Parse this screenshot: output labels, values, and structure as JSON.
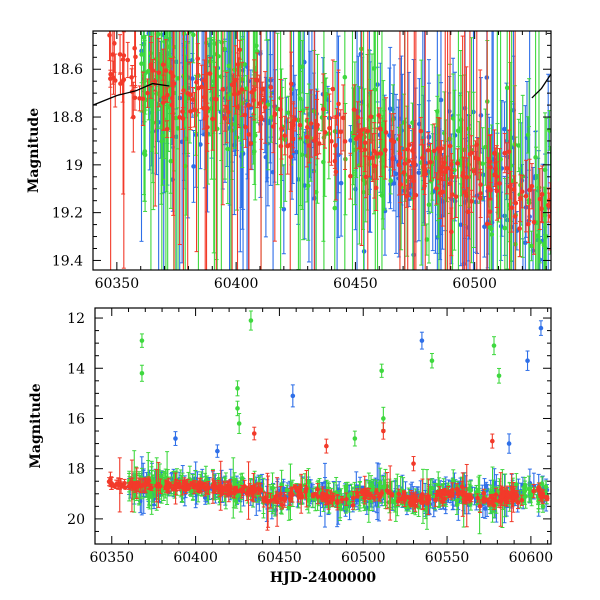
{
  "chart_data": [
    {
      "type": "scatter",
      "panel": "top",
      "ylabel": "Magnitude",
      "xlabel": "",
      "xlim": [
        60340,
        60532
      ],
      "ylim": [
        19.44,
        18.44
      ],
      "y_inverted": true,
      "x_ticks": [
        60350,
        60400,
        60450,
        60500
      ],
      "x_tick_labels": [
        "60350",
        "60400",
        "60450",
        "60500"
      ],
      "y_ticks": [
        18.6,
        18.8,
        19.0,
        19.2,
        19.4
      ],
      "y_tick_labels": [
        "18.6",
        "18.8",
        "19",
        "19.2",
        "19.4"
      ],
      "grid": false,
      "series": [
        {
          "color": "#2e6fe8",
          "values_description_x_range": [
            60360,
            60532
          ],
          "typical_y": [
            18.6,
            19.2
          ]
        },
        {
          "color": "#3ed83e",
          "values_description_x_range": [
            60360,
            60532
          ],
          "typical_y": [
            18.6,
            19.2
          ]
        },
        {
          "color": "#f23a2a",
          "values_description_x_range": [
            60346,
            60532
          ],
          "typical_y": [
            18.55,
            19.15
          ]
        }
      ],
      "trend_curve": {
        "color": "#000000",
        "points": [
          [
            60340,
            18.75
          ],
          [
            60350,
            18.71
          ],
          [
            60358,
            18.69
          ],
          [
            60365,
            18.66
          ],
          [
            60372,
            18.67
          ]
        ]
      },
      "trend_curve_right": {
        "color": "#000000",
        "points": [
          [
            60524,
            18.72
          ],
          [
            60528,
            18.68
          ],
          [
            60532,
            18.62
          ]
        ]
      }
    },
    {
      "type": "scatter",
      "panel": "bottom",
      "ylabel": "Magnitude",
      "xlabel": "HJD-2400000",
      "xlim": [
        60340,
        60612
      ],
      "ylim": [
        21.0,
        11.6
      ],
      "y_inverted": true,
      "x_ticks": [
        60350,
        60400,
        60450,
        60500,
        60550,
        60600
      ],
      "x_tick_labels": [
        "60350",
        "60400",
        "60450",
        "60500",
        "60550",
        "60600"
      ],
      "y_ticks": [
        12,
        14,
        16,
        18,
        20
      ],
      "y_tick_labels": [
        "12",
        "14",
        "16",
        "18",
        "20"
      ],
      "grid": false,
      "series": [
        {
          "color": "#2e6fe8"
        },
        {
          "color": "#3ed83e"
        },
        {
          "color": "#f23a2a"
        }
      ],
      "outliers": [
        {
          "series": 1,
          "x": 60368,
          "y": 12.9
        },
        {
          "series": 1,
          "x": 60368,
          "y": 14.2
        },
        {
          "series": 1,
          "x": 60433,
          "y": 12.1
        },
        {
          "series": 1,
          "x": 60425,
          "y": 14.8
        },
        {
          "series": 1,
          "x": 60425,
          "y": 15.6
        },
        {
          "series": 1,
          "x": 60426,
          "y": 16.2
        },
        {
          "series": 1,
          "x": 60511,
          "y": 14.1
        },
        {
          "series": 1,
          "x": 60512,
          "y": 16.0
        },
        {
          "series": 1,
          "x": 60541,
          "y": 13.7
        },
        {
          "series": 1,
          "x": 60578,
          "y": 13.1
        },
        {
          "series": 1,
          "x": 60581,
          "y": 14.3
        },
        {
          "series": 1,
          "x": 60495,
          "y": 16.8
        },
        {
          "series": 0,
          "x": 60535,
          "y": 12.9
        },
        {
          "series": 0,
          "x": 60598,
          "y": 13.7
        },
        {
          "series": 0,
          "x": 60606,
          "y": 12.4
        },
        {
          "series": 0,
          "x": 60458,
          "y": 15.1
        },
        {
          "series": 0,
          "x": 60388,
          "y": 16.8
        },
        {
          "series": 0,
          "x": 60413,
          "y": 17.3
        },
        {
          "series": 0,
          "x": 60587,
          "y": 17.0
        },
        {
          "series": 2,
          "x": 60512,
          "y": 16.5
        },
        {
          "series": 2,
          "x": 60435,
          "y": 16.6
        },
        {
          "series": 2,
          "x": 60577,
          "y": 16.9
        },
        {
          "series": 2,
          "x": 60478,
          "y": 17.1
        },
        {
          "series": 2,
          "x": 60530,
          "y": 17.8
        }
      ]
    }
  ]
}
